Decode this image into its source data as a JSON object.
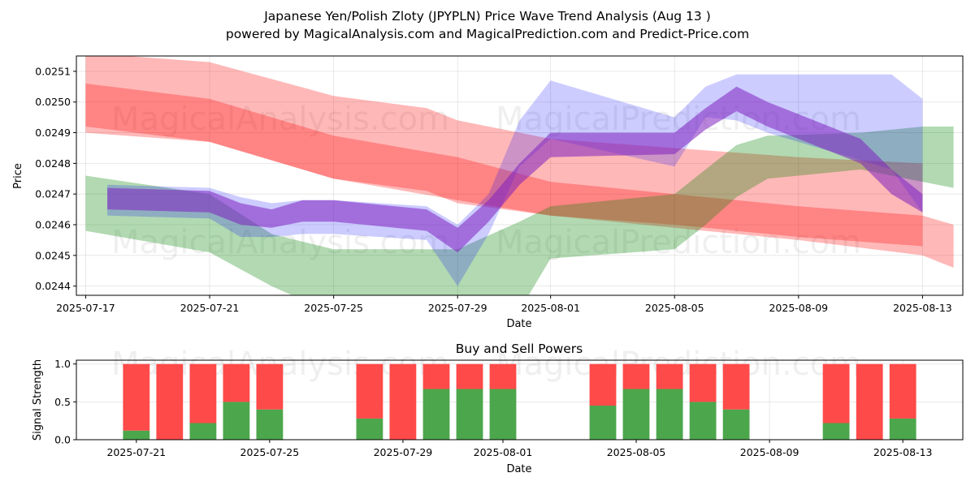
{
  "figure": {
    "title": "Japanese Yen/Polish Zloty (JPYPLN) Price Wave Trend Analysis (Aug 13 )",
    "subtitle": "powered by MagicalAnalysis.com and MagicalPrediction.com and Predict-Price.com",
    "watermark_a": "MagicalAnalysis.com",
    "watermark_b": "MagicalPrediction.com"
  },
  "colors": {
    "red": "#ff0000",
    "green": "#008000",
    "blue": "#0000ff",
    "purple": "#8020c0",
    "buy": "#4ca64c",
    "sell": "#ff4a4a"
  },
  "chart_data": [
    {
      "type": "line",
      "name": "price-wave",
      "xlabel": "Date",
      "ylabel": "Price",
      "ylim": [
        0.02437,
        0.02515
      ],
      "y_ticks": [
        0.0244,
        0.0245,
        0.0246,
        0.0247,
        0.0248,
        0.0249,
        0.025,
        0.0251
      ],
      "y_tick_labels": [
        "0.0244",
        "0.0245",
        "0.0246",
        "0.0247",
        "0.0248",
        "0.0249",
        "0.0250",
        "0.0251"
      ],
      "x_ticks": [
        "2025-07-17",
        "2025-07-21",
        "2025-07-25",
        "2025-07-29",
        "2025-08-01",
        "2025-08-05",
        "2025-08-09",
        "2025-08-13"
      ],
      "x_tick_days": [
        0,
        4,
        8,
        12,
        15,
        19,
        23,
        27
      ],
      "xlim_days": [
        -0.3,
        28.3
      ],
      "grid": true,
      "series": [
        {
          "name": "red-trend-upper",
          "color": "#ff0000",
          "opacity": 0.28,
          "days": [
            0,
            4,
            8,
            11,
            12,
            15,
            19,
            23,
            27
          ],
          "upper": [
            0.02516,
            0.02513,
            0.02502,
            0.02498,
            0.02494,
            0.02488,
            0.02485,
            0.02482,
            0.0248
          ],
          "lower": [
            0.0249,
            0.02487,
            0.02475,
            0.02471,
            0.02467,
            0.02463,
            0.0246,
            0.02456,
            0.02453
          ]
        },
        {
          "name": "red-trend-lower",
          "color": "#ff0000",
          "opacity": 0.28,
          "days": [
            0,
            4,
            8,
            12,
            15,
            19,
            23,
            27,
            28
          ],
          "upper": [
            0.02506,
            0.02501,
            0.02489,
            0.02482,
            0.02474,
            0.0247,
            0.02466,
            0.02463,
            0.0246
          ],
          "lower": [
            0.02492,
            0.02487,
            0.02475,
            0.02468,
            0.02463,
            0.02459,
            0.02455,
            0.0245,
            0.02446
          ]
        },
        {
          "name": "green-trend",
          "color": "#008000",
          "opacity": 0.3,
          "days": [
            0,
            4,
            6,
            8,
            10,
            12,
            14,
            15,
            19,
            20,
            21,
            22,
            25,
            27,
            28
          ],
          "upper": [
            0.02476,
            0.0247,
            0.02457,
            0.02452,
            0.02452,
            0.02452,
            0.02461,
            0.02466,
            0.0247,
            0.02478,
            0.02486,
            0.02489,
            0.0249,
            0.02492,
            0.02492
          ],
          "lower": [
            0.02458,
            0.02451,
            0.0244,
            0.02431,
            0.02425,
            0.02425,
            0.02432,
            0.02449,
            0.02452,
            0.0246,
            0.02469,
            0.02475,
            0.02478,
            0.02474,
            0.02472
          ]
        },
        {
          "name": "blue-wave",
          "color": "#0000ff",
          "opacity": 0.2,
          "days": [
            0.7,
            4,
            5,
            6,
            7,
            8,
            11,
            12,
            13,
            14,
            15,
            19,
            20,
            21,
            22,
            26,
            27
          ],
          "upper": [
            0.02473,
            0.02472,
            0.02469,
            0.02467,
            0.02468,
            0.02468,
            0.02466,
            0.0246,
            0.0247,
            0.02494,
            0.02507,
            0.02495,
            0.02505,
            0.02509,
            0.02509,
            0.02509,
            0.02501
          ],
          "lower": [
            0.02463,
            0.02462,
            0.02456,
            0.02456,
            0.02457,
            0.02457,
            0.02455,
            0.0244,
            0.02457,
            0.02479,
            0.02488,
            0.02479,
            0.02495,
            0.02494,
            0.0249,
            0.02478,
            0.02464
          ]
        },
        {
          "name": "purple-wave",
          "color": "#8020c0",
          "opacity": 0.55,
          "days": [
            0.7,
            4,
            5,
            6,
            7,
            8,
            11,
            12,
            13,
            14,
            15,
            19,
            20,
            21,
            22,
            25,
            26,
            27
          ],
          "upper": [
            0.02472,
            0.02471,
            0.02467,
            0.02465,
            0.02468,
            0.02468,
            0.02465,
            0.02459,
            0.02468,
            0.0248,
            0.0249,
            0.0249,
            0.02498,
            0.02505,
            0.025,
            0.02488,
            0.02478,
            0.0247
          ],
          "lower": [
            0.02465,
            0.02464,
            0.0246,
            0.02459,
            0.02461,
            0.02461,
            0.02458,
            0.02451,
            0.02461,
            0.02473,
            0.02482,
            0.02483,
            0.02491,
            0.02497,
            0.02492,
            0.0248,
            0.0247,
            0.02464
          ]
        }
      ]
    },
    {
      "type": "bar",
      "name": "buy-sell-powers",
      "title": "Buy and Sell Powers",
      "xlabel": "Date",
      "ylabel": "Signal Strength",
      "ylim": [
        0,
        1.05
      ],
      "y_ticks": [
        0.0,
        0.5,
        1.0
      ],
      "y_tick_labels": [
        "0.0",
        "0.5",
        "1.0"
      ],
      "x_ticks": [
        "2025-07-21",
        "2025-07-25",
        "2025-07-29",
        "2025-08-01",
        "2025-08-05",
        "2025-08-09",
        "2025-08-13"
      ],
      "x_tick_days": [
        0,
        4,
        8,
        11,
        15,
        19,
        23
      ],
      "xlim_days": [
        -1.8,
        24.8
      ],
      "grid": true,
      "series": [
        {
          "name": "Buy",
          "color": "#4ca64c"
        },
        {
          "name": "Sell",
          "color": "#ff4a4a"
        }
      ],
      "bars": [
        {
          "day": 0,
          "buy": 0.12
        },
        {
          "day": 1,
          "buy": 0.0
        },
        {
          "day": 2,
          "buy": 0.22
        },
        {
          "day": 3,
          "buy": 0.5
        },
        {
          "day": 4,
          "buy": 0.4
        },
        {
          "day": 7,
          "buy": 0.28
        },
        {
          "day": 8,
          "buy": 0.0
        },
        {
          "day": 9,
          "buy": 0.67
        },
        {
          "day": 10,
          "buy": 0.67
        },
        {
          "day": 11,
          "buy": 0.67
        },
        {
          "day": 14,
          "buy": 0.45
        },
        {
          "day": 15,
          "buy": 0.67
        },
        {
          "day": 16,
          "buy": 0.67
        },
        {
          "day": 17,
          "buy": 0.5
        },
        {
          "day": 18,
          "buy": 0.4
        },
        {
          "day": 21,
          "buy": 0.22
        },
        {
          "day": 22,
          "buy": 0.0
        },
        {
          "day": 23,
          "buy": 0.28
        }
      ],
      "total": 1.0
    }
  ]
}
